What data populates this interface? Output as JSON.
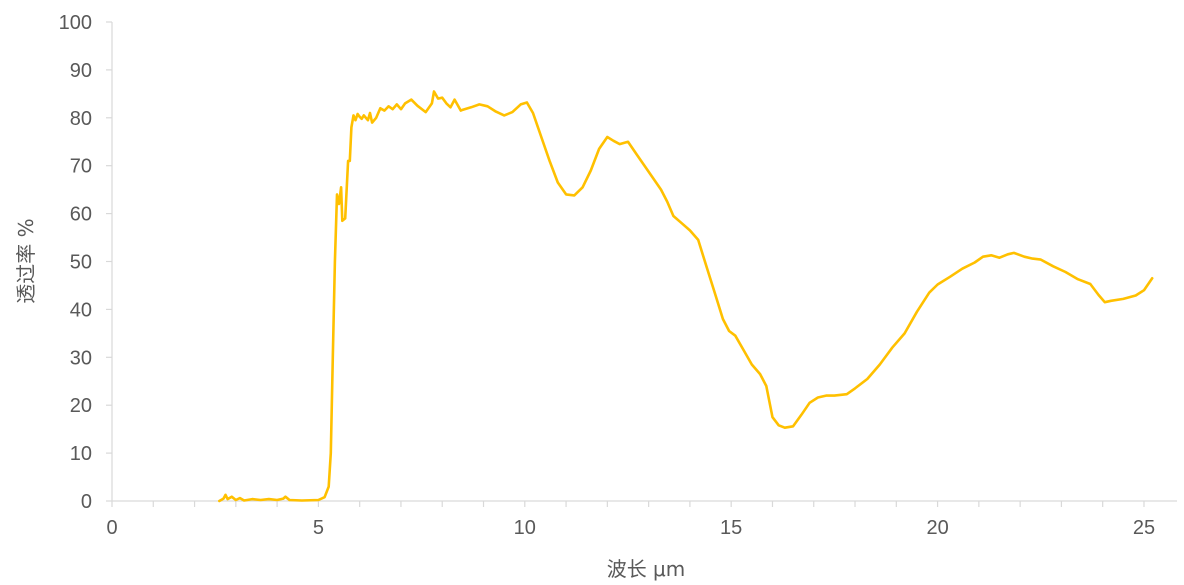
{
  "chart_data": {
    "type": "line",
    "title": "",
    "xlabel": "波长 μm",
    "ylabel": "透过率 %",
    "xlim": [
      0,
      25.8
    ],
    "ylim": [
      0,
      100
    ],
    "x_ticks": [
      0,
      5,
      10,
      15,
      20,
      25
    ],
    "y_ticks": [
      0,
      10,
      20,
      30,
      40,
      50,
      60,
      70,
      80,
      90,
      100
    ],
    "x_tick_labels": [
      "0",
      "5",
      "10",
      "15",
      "20",
      "25"
    ],
    "y_tick_labels": [
      "0",
      "10",
      "20",
      "30",
      "40",
      "50",
      "60",
      "70",
      "80",
      "90",
      "100"
    ],
    "grid": false,
    "legend": "none",
    "colors": {
      "line": "#FFC000",
      "axis": "#D9D9D9",
      "text": "#595959"
    },
    "series": [
      {
        "color": "#FFC000",
        "points": [
          [
            2.6,
            0.0
          ],
          [
            2.7,
            0.5
          ],
          [
            2.75,
            1.3
          ],
          [
            2.8,
            0.4
          ],
          [
            2.9,
            0.9
          ],
          [
            3.0,
            0.2
          ],
          [
            3.1,
            0.6
          ],
          [
            3.2,
            0.1
          ],
          [
            3.4,
            0.4
          ],
          [
            3.6,
            0.2
          ],
          [
            3.8,
            0.4
          ],
          [
            4.0,
            0.2
          ],
          [
            4.15,
            0.5
          ],
          [
            4.2,
            0.9
          ],
          [
            4.3,
            0.2
          ],
          [
            4.6,
            0.1
          ],
          [
            5.0,
            0.2
          ],
          [
            5.15,
            0.8
          ],
          [
            5.25,
            3.0
          ],
          [
            5.3,
            10.0
          ],
          [
            5.35,
            30.0
          ],
          [
            5.4,
            50.0
          ],
          [
            5.45,
            64.0
          ],
          [
            5.5,
            62.0
          ],
          [
            5.55,
            65.5
          ],
          [
            5.58,
            58.5
          ],
          [
            5.65,
            59.0
          ],
          [
            5.72,
            71.0
          ],
          [
            5.76,
            71.0
          ],
          [
            5.8,
            78.0
          ],
          [
            5.85,
            80.5
          ],
          [
            5.9,
            79.5
          ],
          [
            5.95,
            80.8
          ],
          [
            6.0,
            80.2
          ],
          [
            6.05,
            79.8
          ],
          [
            6.1,
            80.5
          ],
          [
            6.2,
            79.5
          ],
          [
            6.25,
            81.0
          ],
          [
            6.3,
            79.0
          ],
          [
            6.4,
            80.0
          ],
          [
            6.5,
            82.0
          ],
          [
            6.6,
            81.5
          ],
          [
            6.7,
            82.4
          ],
          [
            6.8,
            81.8
          ],
          [
            6.9,
            82.8
          ],
          [
            7.0,
            81.8
          ],
          [
            7.1,
            83.0
          ],
          [
            7.25,
            83.8
          ],
          [
            7.4,
            82.5
          ],
          [
            7.6,
            81.2
          ],
          [
            7.75,
            83.0
          ],
          [
            7.8,
            85.5
          ],
          [
            7.9,
            84.0
          ],
          [
            8.0,
            84.2
          ],
          [
            8.1,
            83.0
          ],
          [
            8.2,
            82.2
          ],
          [
            8.3,
            83.8
          ],
          [
            8.45,
            81.5
          ],
          [
            8.5,
            81.7
          ],
          [
            8.7,
            82.2
          ],
          [
            8.9,
            82.8
          ],
          [
            9.1,
            82.4
          ],
          [
            9.3,
            81.3
          ],
          [
            9.5,
            80.5
          ],
          [
            9.7,
            81.2
          ],
          [
            9.9,
            82.8
          ],
          [
            10.05,
            83.2
          ],
          [
            10.2,
            81.0
          ],
          [
            10.4,
            76.0
          ],
          [
            10.6,
            71.0
          ],
          [
            10.8,
            66.5
          ],
          [
            11.0,
            64.0
          ],
          [
            11.2,
            63.8
          ],
          [
            11.4,
            65.5
          ],
          [
            11.6,
            69.0
          ],
          [
            11.8,
            73.5
          ],
          [
            12.0,
            76.0
          ],
          [
            12.15,
            75.2
          ],
          [
            12.3,
            74.5
          ],
          [
            12.5,
            75.0
          ],
          [
            12.7,
            72.5
          ],
          [
            12.9,
            70.0
          ],
          [
            13.1,
            67.5
          ],
          [
            13.3,
            65.0
          ],
          [
            13.45,
            62.5
          ],
          [
            13.6,
            59.5
          ],
          [
            13.8,
            58.0
          ],
          [
            14.0,
            56.5
          ],
          [
            14.2,
            54.5
          ],
          [
            14.4,
            49.0
          ],
          [
            14.6,
            43.5
          ],
          [
            14.8,
            38.0
          ],
          [
            14.95,
            35.5
          ],
          [
            15.1,
            34.5
          ],
          [
            15.3,
            31.5
          ],
          [
            15.5,
            28.5
          ],
          [
            15.7,
            26.5
          ],
          [
            15.85,
            24.0
          ],
          [
            16.0,
            17.5
          ],
          [
            16.15,
            15.8
          ],
          [
            16.3,
            15.3
          ],
          [
            16.5,
            15.6
          ],
          [
            16.7,
            18.0
          ],
          [
            16.9,
            20.5
          ],
          [
            17.1,
            21.6
          ],
          [
            17.3,
            22.0
          ],
          [
            17.5,
            22.0
          ],
          [
            17.8,
            22.3
          ],
          [
            18.0,
            23.5
          ],
          [
            18.3,
            25.5
          ],
          [
            18.6,
            28.5
          ],
          [
            18.9,
            32.0
          ],
          [
            19.2,
            35.0
          ],
          [
            19.5,
            39.5
          ],
          [
            19.8,
            43.5
          ],
          [
            20.0,
            45.2
          ],
          [
            20.3,
            46.8
          ],
          [
            20.6,
            48.5
          ],
          [
            20.9,
            49.8
          ],
          [
            21.1,
            51.0
          ],
          [
            21.3,
            51.3
          ],
          [
            21.5,
            50.8
          ],
          [
            21.7,
            51.5
          ],
          [
            21.85,
            51.8
          ],
          [
            22.1,
            51.0
          ],
          [
            22.3,
            50.6
          ],
          [
            22.5,
            50.4
          ],
          [
            22.8,
            49.0
          ],
          [
            23.1,
            47.8
          ],
          [
            23.4,
            46.3
          ],
          [
            23.7,
            45.3
          ],
          [
            23.9,
            43.0
          ],
          [
            24.05,
            41.5
          ],
          [
            24.2,
            41.8
          ],
          [
            24.5,
            42.2
          ],
          [
            24.8,
            42.9
          ],
          [
            25.0,
            44.0
          ],
          [
            25.2,
            46.5
          ]
        ]
      }
    ]
  }
}
